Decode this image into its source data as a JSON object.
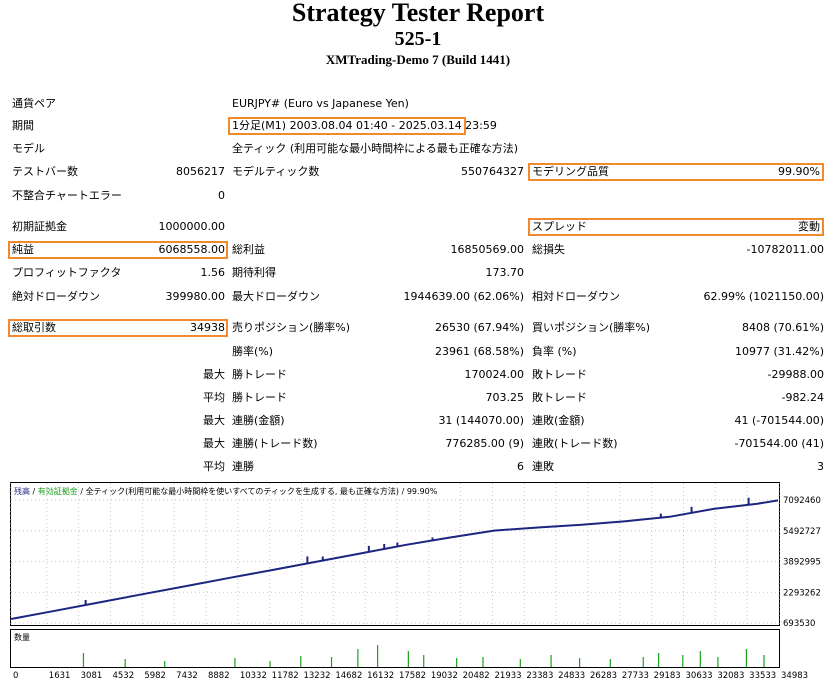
{
  "report": {
    "title": "Strategy Tester Report",
    "subtitle": "525-1",
    "server": "XMTrading-Demo 7 (Build 1441)"
  },
  "top": {
    "symbol_label": "通貨ペア",
    "symbol_value": "EURJPY# (Euro vs Japanese Yen)",
    "period_label": "期間",
    "period_value": "1分足(M1) 2003.08.04 01:40 - 2025.03.14 23:59",
    "model_label": "モデル",
    "model_value": "全ティック (利用可能な最小時間枠による最も正確な方法)",
    "bars_label": "テストバー数",
    "bars_value": "8056217",
    "ticks_label": "モデルティック数",
    "ticks_value": "550764327",
    "quality_label": "モデリング品質",
    "quality_value": "99.90%",
    "mismatch_label": "不整合チャートエラー",
    "mismatch_value": "0"
  },
  "stats": {
    "deposit_label": "初期証拠金",
    "deposit_value": "1000000.00",
    "spread_label": "スプレッド",
    "spread_value": "変動",
    "net_label": "純益",
    "net_value": "6068558.00",
    "gross_profit_label": "総利益",
    "gross_profit_value": "16850569.00",
    "gross_loss_label": "総損失",
    "gross_loss_value": "-10782011.00",
    "pf_label": "プロフィットファクタ",
    "pf_value": "1.56",
    "expected_label": "期待利得",
    "expected_value": "173.70",
    "abs_dd_label": "絶対ドローダウン",
    "abs_dd_value": "399980.00",
    "max_dd_label": "最大ドローダウン",
    "max_dd_value": "1944639.00 (62.06%)",
    "rel_dd_label": "相対ドローダウン",
    "rel_dd_value": "62.99% (1021150.00)",
    "total_trades_label": "総取引数",
    "total_trades_value": "34938",
    "short_label": "売りポジション(勝率%)",
    "short_value": "26530 (67.94%)",
    "long_label": "買いポジション(勝率%)",
    "long_value": "8408 (70.61%)",
    "win_pct_label": "勝率(%)",
    "win_pct_value": "23961 (68.58%)",
    "loss_pct_label": "負率 (%)",
    "loss_pct_value": "10977 (31.42%)",
    "max_label": "最大",
    "avg_label": "平均",
    "largest_win_label": "勝トレード",
    "largest_win_value": "170024.00",
    "largest_loss_label": "敗トレード",
    "largest_loss_value": "-29988.00",
    "avg_win_label": "勝トレード",
    "avg_win_value": "703.25",
    "avg_loss_label": "敗トレード",
    "avg_loss_value": "-982.24",
    "cons_wins_amt_label": "連勝(金額)",
    "cons_wins_amt_value": "31 (144070.00)",
    "cons_loss_amt_label": "連敗(金額)",
    "cons_loss_amt_value": "41 (-701544.00)",
    "cons_wins_cnt_label": "連勝(トレード数)",
    "cons_wins_cnt_value": "776285.00 (9)",
    "cons_loss_cnt_label": "連敗(トレード数)",
    "cons_loss_cnt_value": "-701544.00 (41)",
    "avg_cons_wins_label": "連勝",
    "avg_cons_wins_value": "6",
    "avg_cons_loss_label": "連敗",
    "avg_cons_loss_value": "3"
  },
  "colors": {
    "highlight": "#f08a2c",
    "balance": "#1c2580",
    "volume": "#1aa31a"
  },
  "chart_data": {
    "type": "line",
    "legend": {
      "balance": "残高",
      "sep1": " / ",
      "equity": "有効証拠金",
      "sep2": " / ",
      "model": "全ティック(利用可能な最小時間枠を使いすべてのティックを生成する, 最も正確な方法)",
      "sep3": " / ",
      "quality": "99.90%"
    },
    "volume_label": "数量",
    "y_ticks": [
      7092460,
      5492727,
      3892995,
      2293262,
      693530
    ],
    "x_ticks": [
      0,
      1631,
      3081,
      4532,
      5982,
      7432,
      8882,
      10332,
      11782,
      13232,
      14682,
      16132,
      17582,
      19032,
      20482,
      21933,
      23383,
      24833,
      26283,
      27733,
      29183,
      30633,
      32083,
      33533,
      34983
    ],
    "series": [
      {
        "x": [
          0,
          2000,
          4000,
          6000,
          8000,
          10000,
          12000,
          14000,
          16000,
          18000,
          20000,
          22000,
          24000,
          26000,
          28000,
          30000,
          32000,
          34000,
          34938
        ],
        "y": [
          900000,
          1330000,
          1760000,
          2190000,
          2620000,
          3050000,
          3470000,
          3900000,
          4330000,
          4760000,
          5140000,
          5500000,
          5660000,
          5810000,
          5990000,
          6220000,
          6630000,
          6900000,
          7070000
        ]
      }
    ],
    "ylim": [
      693530,
      7092460
    ],
    "xlim": [
      0,
      34983
    ]
  }
}
